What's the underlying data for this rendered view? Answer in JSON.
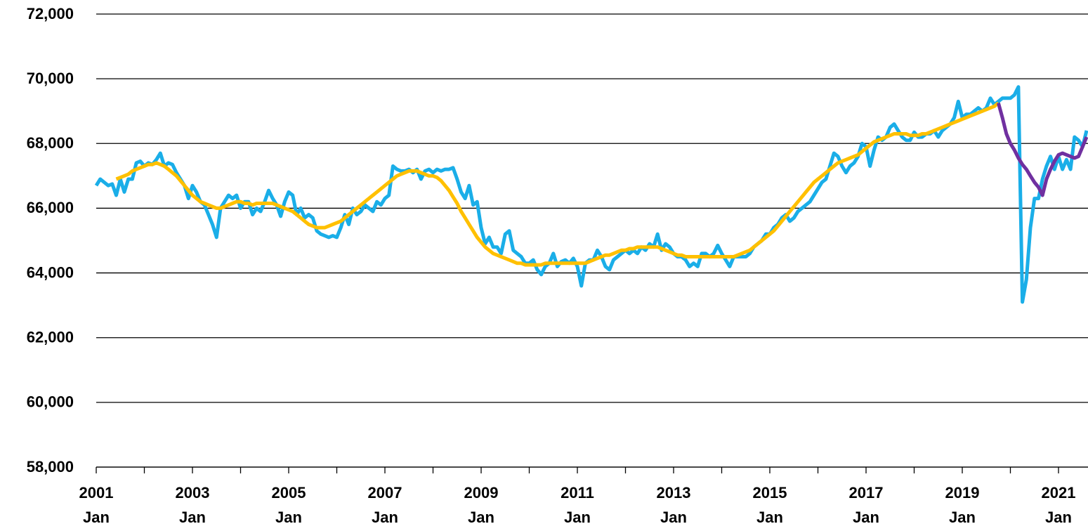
{
  "chart_data": {
    "type": "line",
    "categories": [
      "2001\nJan",
      null,
      null,
      null,
      null,
      null,
      null,
      null,
      null,
      null,
      null,
      null,
      null,
      null,
      null,
      null,
      null,
      null,
      null,
      null,
      null,
      null,
      null,
      null,
      "2003\nJan",
      null,
      null,
      null,
      null,
      null,
      null,
      null,
      null,
      null,
      null,
      null,
      null,
      null,
      null,
      null,
      null,
      null,
      null,
      null,
      null,
      null,
      null,
      null,
      "2005\nJan",
      null,
      null,
      null,
      null,
      null,
      null,
      null,
      null,
      null,
      null,
      null,
      null,
      null,
      null,
      null,
      null,
      null,
      null,
      null,
      null,
      null,
      null,
      null,
      "2007\nJan",
      null,
      null,
      null,
      null,
      null,
      null,
      null,
      null,
      null,
      null,
      null,
      null,
      null,
      null,
      null,
      null,
      null,
      null,
      null,
      null,
      null,
      null,
      null,
      "2009\nJan",
      null,
      null,
      null,
      null,
      null,
      null,
      null,
      null,
      null,
      null,
      null,
      null,
      null,
      null,
      null,
      null,
      null,
      null,
      null,
      null,
      null,
      null,
      null,
      "2011\nJan",
      null,
      null,
      null,
      null,
      null,
      null,
      null,
      null,
      null,
      null,
      null,
      null,
      null,
      null,
      null,
      null,
      null,
      null,
      null,
      null,
      null,
      null,
      null,
      "2013\nJan",
      null,
      null,
      null,
      null,
      null,
      null,
      null,
      null,
      null,
      null,
      null,
      null,
      null,
      null,
      null,
      null,
      null,
      null,
      null,
      null,
      null,
      null,
      null,
      "2015\nJan",
      null,
      null,
      null,
      null,
      null,
      null,
      null,
      null,
      null,
      null,
      null,
      null,
      null,
      null,
      null,
      null,
      null,
      null,
      null,
      null,
      null,
      null,
      null,
      "2017\nJan",
      null,
      null,
      null,
      null,
      null,
      null,
      null,
      null,
      null,
      null,
      null,
      null,
      null,
      null,
      null,
      null,
      null,
      null,
      null,
      null,
      null,
      null,
      null,
      "2019\nJan",
      null,
      null,
      null,
      null,
      null,
      null,
      null,
      null,
      null,
      null,
      null,
      null,
      null,
      null,
      null,
      null,
      null,
      null,
      null,
      null,
      null,
      null,
      null,
      "2021\nJan",
      null,
      null,
      null,
      null,
      null,
      null,
      null
    ],
    "series": [
      {
        "color": "#1aaee8",
        "values": [
          66700,
          66900,
          66800,
          66700,
          66750,
          66400,
          66900,
          66500,
          66900,
          66900,
          67400,
          67450,
          67300,
          67400,
          67350,
          67500,
          67700,
          67300,
          67400,
          67350,
          67100,
          66900,
          66700,
          66300,
          66700,
          66500,
          66200,
          66100,
          65800,
          65500,
          65100,
          66000,
          66200,
          66400,
          66300,
          66400,
          66000,
          66200,
          66200,
          65800,
          66000,
          65900,
          66200,
          66550,
          66300,
          66100,
          65750,
          66200,
          66500,
          66400,
          65800,
          66000,
          65700,
          65800,
          65700,
          65300,
          65200,
          65150,
          65100,
          65150,
          65100,
          65400,
          65800,
          65500,
          66000,
          65800,
          65900,
          66100,
          66000,
          65900,
          66200,
          66100,
          66300,
          66400,
          67300,
          67200,
          67150,
          67150,
          67200,
          67100,
          67200,
          66900,
          67150,
          67200,
          67100,
          67200,
          67150,
          67200,
          67200,
          67250,
          66900,
          66500,
          66300,
          66700,
          66100,
          66200,
          65400,
          64900,
          65100,
          64800,
          64800,
          64600,
          65200,
          65300,
          64700,
          64600,
          64500,
          64300,
          64300,
          64400,
          64100,
          63950,
          64200,
          64300,
          64600,
          64200,
          64350,
          64400,
          64300,
          64450,
          64200,
          63600,
          64300,
          64400,
          64400,
          64700,
          64500,
          64200,
          64100,
          64400,
          64500,
          64600,
          64700,
          64600,
          64700,
          64600,
          64800,
          64700,
          64900,
          64800,
          65200,
          64700,
          64900,
          64800,
          64600,
          64500,
          64500,
          64400,
          64200,
          64300,
          64200,
          64600,
          64600,
          64500,
          64600,
          64850,
          64600,
          64400,
          64200,
          64500,
          64500,
          64500,
          64500,
          64600,
          64800,
          64900,
          65000,
          65200,
          65200,
          65400,
          65500,
          65700,
          65800,
          65600,
          65700,
          65900,
          66000,
          66100,
          66200,
          66400,
          66600,
          66800,
          66900,
          67300,
          67700,
          67600,
          67300,
          67100,
          67300,
          67400,
          67600,
          68000,
          67900,
          67300,
          67800,
          68200,
          68100,
          68200,
          68500,
          68600,
          68400,
          68200,
          68100,
          68100,
          68350,
          68200,
          68200,
          68300,
          68300,
          68400,
          68200,
          68400,
          68500,
          68600,
          68800,
          69300,
          68800,
          68900,
          68900,
          69000,
          69100,
          69000,
          69100,
          69400,
          69200,
          69300,
          69400,
          69400,
          69400,
          69500,
          69750,
          63100,
          63800,
          65400,
          66300,
          66300,
          66900,
          67300,
          67600,
          67200,
          67600,
          67200,
          67500,
          67200,
          68200,
          68100,
          67900,
          68400
        ]
      },
      {
        "color": "#ffc000",
        "values": [
          null,
          null,
          null,
          null,
          null,
          66900,
          66950,
          67000,
          67050,
          67150,
          67200,
          67250,
          67300,
          67350,
          67350,
          67400,
          67350,
          67300,
          67200,
          67100,
          67000,
          66850,
          66700,
          66550,
          66400,
          66300,
          66200,
          66150,
          66100,
          66050,
          66000,
          66000,
          66050,
          66100,
          66150,
          66200,
          66200,
          66150,
          66150,
          66100,
          66150,
          66150,
          66150,
          66150,
          66150,
          66100,
          66050,
          66000,
          65950,
          65900,
          65800,
          65700,
          65600,
          65500,
          65450,
          65400,
          65400,
          65400,
          65450,
          65500,
          65550,
          65600,
          65700,
          65800,
          65900,
          66000,
          66100,
          66200,
          66300,
          66400,
          66500,
          66600,
          66700,
          66800,
          66900,
          67000,
          67050,
          67100,
          67150,
          67150,
          67150,
          67100,
          67050,
          67000,
          67000,
          66950,
          66850,
          66700,
          66550,
          66350,
          66150,
          65900,
          65700,
          65500,
          65300,
          65100,
          64950,
          64800,
          64700,
          64600,
          64550,
          64500,
          64450,
          64400,
          64350,
          64300,
          64300,
          64250,
          64250,
          64250,
          64250,
          64250,
          64300,
          64300,
          64300,
          64300,
          64300,
          64300,
          64300,
          64300,
          64300,
          64300,
          64300,
          64350,
          64400,
          64450,
          64500,
          64550,
          64550,
          64600,
          64650,
          64700,
          64700,
          64750,
          64750,
          64800,
          64800,
          64800,
          64800,
          64800,
          64800,
          64750,
          64700,
          64650,
          64600,
          64550,
          64550,
          64500,
          64500,
          64500,
          64500,
          64500,
          64500,
          64500,
          64500,
          64500,
          64500,
          64500,
          64500,
          64500,
          64550,
          64600,
          64650,
          64700,
          64800,
          64900,
          65000,
          65100,
          65200,
          65300,
          65450,
          65600,
          65750,
          65900,
          66050,
          66200,
          66350,
          66500,
          66650,
          66800,
          66900,
          67000,
          67100,
          67200,
          67300,
          67400,
          67450,
          67500,
          67550,
          67600,
          67650,
          67750,
          67850,
          67950,
          68050,
          68100,
          68150,
          68200,
          68250,
          68300,
          68300,
          68300,
          68300,
          68250,
          68250,
          68250,
          68300,
          68300,
          68350,
          68400,
          68450,
          68500,
          68550,
          68600,
          68650,
          68700,
          68750,
          68800,
          68850,
          68900,
          68950,
          69000,
          69050,
          69100,
          69150,
          69250,
          null,
          null,
          null,
          null,
          null,
          null,
          null,
          null,
          null,
          null,
          null,
          null,
          null,
          null,
          null,
          null,
          null,
          null,
          null,
          null,
          null,
          null
        ]
      },
      {
        "color": "#7030a0",
        "values": [
          null,
          null,
          null,
          null,
          null,
          null,
          null,
          null,
          null,
          null,
          null,
          null,
          null,
          null,
          null,
          null,
          null,
          null,
          null,
          null,
          null,
          null,
          null,
          null,
          null,
          null,
          null,
          null,
          null,
          null,
          null,
          null,
          null,
          null,
          null,
          null,
          null,
          null,
          null,
          null,
          null,
          null,
          null,
          null,
          null,
          null,
          null,
          null,
          null,
          null,
          null,
          null,
          null,
          null,
          null,
          null,
          null,
          null,
          null,
          null,
          null,
          null,
          null,
          null,
          null,
          null,
          null,
          null,
          null,
          null,
          null,
          null,
          null,
          null,
          null,
          null,
          null,
          null,
          null,
          null,
          null,
          null,
          null,
          null,
          null,
          null,
          null,
          null,
          null,
          null,
          null,
          null,
          null,
          null,
          null,
          null,
          null,
          null,
          null,
          null,
          null,
          null,
          null,
          null,
          null,
          null,
          null,
          null,
          null,
          null,
          null,
          null,
          null,
          null,
          null,
          null,
          null,
          null,
          null,
          null,
          null,
          null,
          null,
          null,
          null,
          null,
          null,
          null,
          null,
          null,
          null,
          null,
          null,
          null,
          null,
          null,
          null,
          null,
          null,
          null,
          null,
          null,
          null,
          null,
          null,
          null,
          null,
          null,
          null,
          null,
          null,
          null,
          null,
          null,
          null,
          null,
          null,
          null,
          null,
          null,
          null,
          null,
          null,
          null,
          null,
          null,
          null,
          null,
          null,
          null,
          null,
          null,
          null,
          null,
          null,
          null,
          null,
          null,
          null,
          null,
          null,
          null,
          null,
          null,
          null,
          null,
          null,
          null,
          null,
          null,
          null,
          null,
          null,
          null,
          null,
          null,
          null,
          null,
          null,
          null,
          null,
          null,
          null,
          null,
          null,
          null,
          null,
          null,
          null,
          null,
          null,
          null,
          null,
          null,
          null,
          null,
          null,
          null,
          null,
          null,
          null,
          null,
          null,
          null,
          null,
          69250,
          68800,
          68300,
          68000,
          67800,
          67550,
          67350,
          67200,
          67000,
          66800,
          66650,
          66400,
          66900,
          67200,
          67450,
          67650,
          67700,
          67650,
          67600,
          67550,
          67600,
          67900,
          68200
        ]
      }
    ],
    "ylim": [
      58000,
      72000
    ],
    "yticks": [
      {
        "value": 58000,
        "label": "58,000"
      },
      {
        "value": 60000,
        "label": "60,000"
      },
      {
        "value": 62000,
        "label": "62,000"
      },
      {
        "value": 64000,
        "label": "64,000"
      },
      {
        "value": 66000,
        "label": "66,000"
      },
      {
        "value": 68000,
        "label": "68,000"
      },
      {
        "value": 70000,
        "label": "70,000"
      },
      {
        "value": 72000,
        "label": "72,000"
      }
    ],
    "grid": true
  }
}
